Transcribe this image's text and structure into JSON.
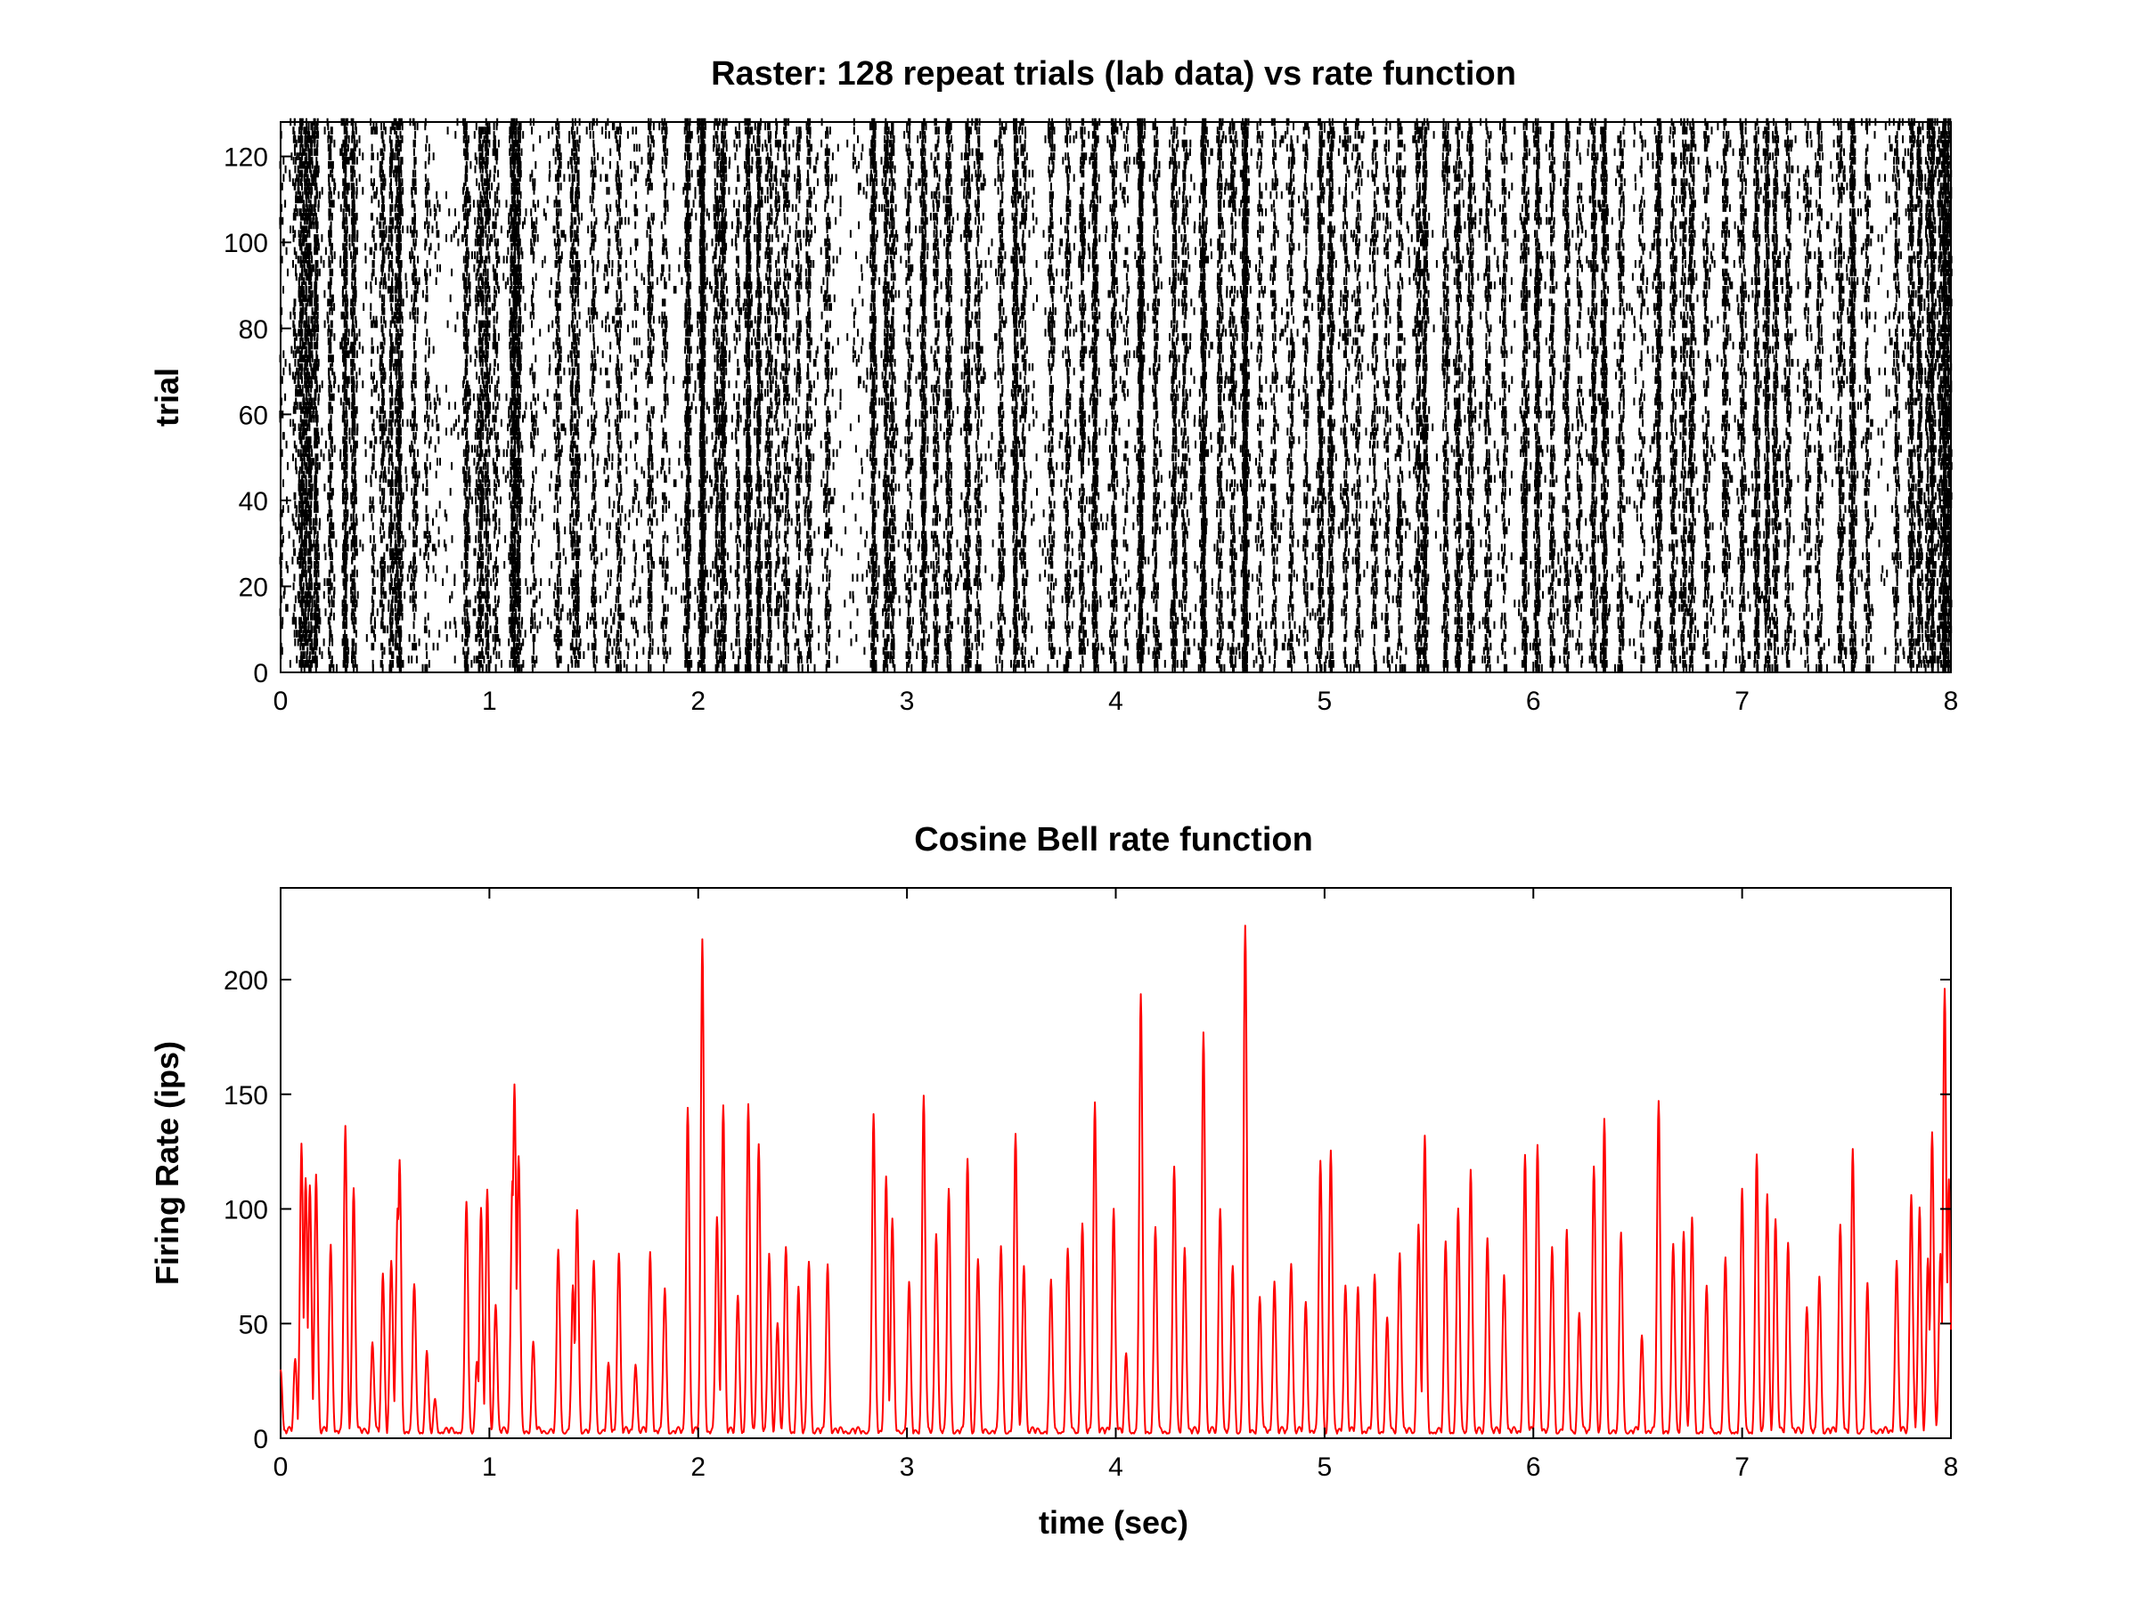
{
  "chart_data": [
    {
      "type": "scatter",
      "subtype": "raster",
      "title": "Raster: 128 repeat trials (lab data) vs rate function",
      "xlabel": "",
      "ylabel": "trial",
      "xlim": [
        0,
        8
      ],
      "ylim": [
        0,
        128
      ],
      "xticks": [
        0,
        1,
        2,
        3,
        4,
        5,
        6,
        7,
        8
      ],
      "yticks": [
        0,
        20,
        40,
        60,
        80,
        100,
        120
      ],
      "n_trials": 128,
      "mark_color": "#000000",
      "grid": false,
      "note": "dense spike raster; spike times cluster in vertical bands aligned with rate peaks"
    },
    {
      "type": "line",
      "title": "Cosine Bell rate function",
      "xlabel": "time (sec)",
      "ylabel": "Firing Rate (ips)",
      "xlim": [
        0,
        8
      ],
      "ylim": [
        0,
        240
      ],
      "xticks": [
        0,
        1,
        2,
        3,
        4,
        5,
        6,
        7,
        8
      ],
      "yticks": [
        0,
        50,
        100,
        150,
        200
      ],
      "line_color": "#ff0000",
      "grid": false,
      "peaks": [
        [
          0.0,
          30
        ],
        [
          0.07,
          33
        ],
        [
          0.1,
          127
        ],
        [
          0.12,
          111
        ],
        [
          0.14,
          110
        ],
        [
          0.17,
          115
        ],
        [
          0.24,
          83
        ],
        [
          0.31,
          135
        ],
        [
          0.35,
          108
        ],
        [
          0.44,
          41
        ],
        [
          0.49,
          70
        ],
        [
          0.53,
          77
        ],
        [
          0.56,
          99
        ],
        [
          0.57,
          119
        ],
        [
          0.64,
          67
        ],
        [
          0.7,
          37
        ],
        [
          0.74,
          15
        ],
        [
          0.89,
          103
        ],
        [
          0.94,
          33
        ],
        [
          0.96,
          98
        ],
        [
          0.99,
          106
        ],
        [
          1.03,
          58
        ],
        [
          1.11,
          112
        ],
        [
          1.12,
          153
        ],
        [
          1.14,
          123
        ],
        [
          1.21,
          40
        ],
        [
          1.33,
          81
        ],
        [
          1.4,
          64
        ],
        [
          1.42,
          99
        ],
        [
          1.5,
          77
        ],
        [
          1.57,
          30
        ],
        [
          1.62,
          80
        ],
        [
          1.7,
          32
        ],
        [
          1.77,
          80
        ],
        [
          1.84,
          64
        ],
        [
          1.95,
          144
        ],
        [
          2.02,
          216
        ],
        [
          2.09,
          95
        ],
        [
          2.12,
          145
        ],
        [
          2.19,
          61
        ],
        [
          2.24,
          143
        ],
        [
          2.29,
          128
        ],
        [
          2.34,
          79
        ],
        [
          2.38,
          50
        ],
        [
          2.42,
          83
        ],
        [
          2.48,
          65
        ],
        [
          2.53,
          77
        ],
        [
          2.62,
          75
        ],
        [
          2.84,
          140
        ],
        [
          2.9,
          113
        ],
        [
          2.93,
          93
        ],
        [
          3.01,
          66
        ],
        [
          3.08,
          148
        ],
        [
          3.14,
          89
        ],
        [
          3.2,
          108
        ],
        [
          3.29,
          120
        ],
        [
          3.34,
          77
        ],
        [
          3.45,
          83
        ],
        [
          3.52,
          130
        ],
        [
          3.56,
          75
        ],
        [
          3.69,
          67
        ],
        [
          3.77,
          80
        ],
        [
          3.84,
          93
        ],
        [
          3.9,
          146
        ],
        [
          3.99,
          100
        ],
        [
          4.05,
          35
        ],
        [
          4.12,
          192
        ],
        [
          4.19,
          90
        ],
        [
          4.28,
          118
        ],
        [
          4.33,
          83
        ],
        [
          4.42,
          177
        ],
        [
          4.5,
          100
        ],
        [
          4.56,
          75
        ],
        [
          4.62,
          222
        ],
        [
          4.69,
          60
        ],
        [
          4.76,
          68
        ],
        [
          4.84,
          76
        ],
        [
          4.91,
          58
        ],
        [
          4.98,
          120
        ],
        [
          5.03,
          125
        ],
        [
          5.1,
          66
        ],
        [
          5.16,
          64
        ],
        [
          5.24,
          69
        ],
        [
          5.3,
          50
        ],
        [
          5.36,
          80
        ],
        [
          5.45,
          93
        ],
        [
          5.48,
          131
        ],
        [
          5.58,
          84
        ],
        [
          5.64,
          99
        ],
        [
          5.7,
          117
        ],
        [
          5.78,
          87
        ],
        [
          5.86,
          71
        ],
        [
          5.96,
          122
        ],
        [
          6.02,
          127
        ],
        [
          6.09,
          83
        ],
        [
          6.16,
          88
        ],
        [
          6.22,
          53
        ],
        [
          6.29,
          118
        ],
        [
          6.34,
          139
        ],
        [
          6.42,
          89
        ],
        [
          6.52,
          43
        ],
        [
          6.6,
          145
        ],
        [
          6.67,
          84
        ],
        [
          6.72,
          89
        ],
        [
          6.76,
          95
        ],
        [
          6.83,
          64
        ],
        [
          6.92,
          78
        ],
        [
          7.0,
          107
        ],
        [
          7.07,
          122
        ],
        [
          7.12,
          106
        ],
        [
          7.16,
          93
        ],
        [
          7.22,
          85
        ],
        [
          7.31,
          57
        ],
        [
          7.37,
          70
        ],
        [
          7.47,
          93
        ],
        [
          7.53,
          125
        ],
        [
          7.6,
          65
        ],
        [
          7.74,
          76
        ],
        [
          7.81,
          106
        ],
        [
          7.85,
          98
        ],
        [
          7.89,
          78
        ],
        [
          7.91,
          132
        ],
        [
          7.95,
          80
        ],
        [
          7.97,
          195
        ],
        [
          7.99,
          112
        ]
      ]
    }
  ]
}
